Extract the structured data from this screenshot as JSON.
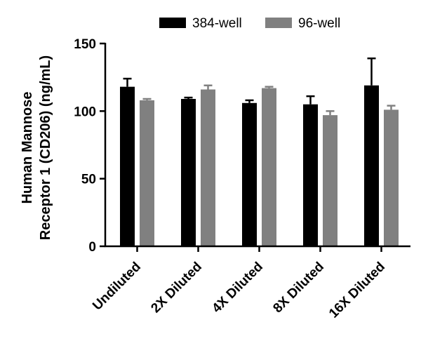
{
  "chart_data": {
    "type": "bar",
    "categories": [
      "Undiluted",
      "2X Diluted",
      "4X Diluted",
      "8X Diluted",
      "16X Diluted"
    ],
    "series": [
      {
        "name": "384-well",
        "color": "#000000",
        "values": [
          118,
          109,
          106,
          105,
          119
        ],
        "errors": [
          6,
          1,
          2,
          6,
          20
        ]
      },
      {
        "name": "96-well",
        "color": "#808080",
        "values": [
          108,
          116,
          117,
          97,
          101
        ],
        "errors": [
          1,
          3,
          1,
          3,
          3
        ]
      }
    ],
    "yticks": [
      0,
      50,
      100,
      150
    ],
    "ylim": [
      0,
      150
    ],
    "ylabel_lines": [
      "Human Mannose",
      "Receptor 1 (CD206) (ng/mL)"
    ],
    "xlabel": "",
    "legend_position": "top"
  }
}
